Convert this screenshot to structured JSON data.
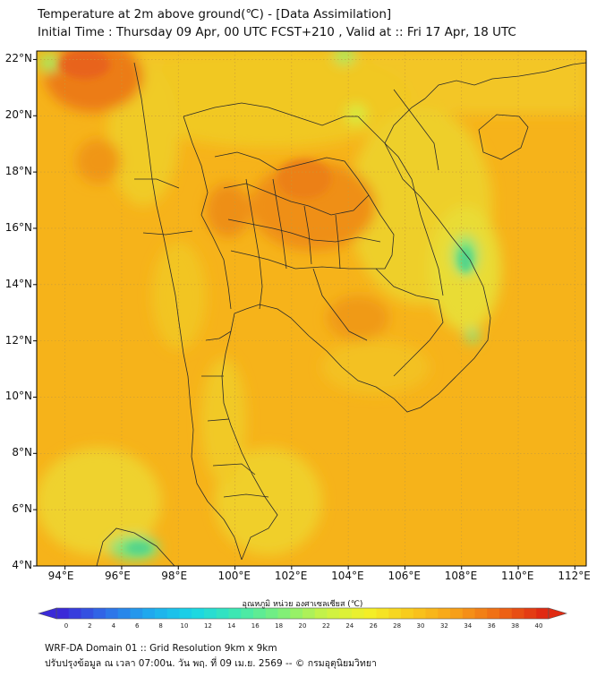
{
  "title": {
    "line1": "Temperature at 2m above ground(℃) - [Data Assimilation]",
    "line2": "Initial Time : Thursday 09 Apr, 00 UTC FCST+210 , Valid at :: Fri 17 Apr, 18 UTC"
  },
  "axes": {
    "lat_labels": [
      "22°N",
      "20°N",
      "18°N",
      "16°N",
      "14°N",
      "12°N",
      "10°N",
      "8°N",
      "6°N",
      "4°N"
    ],
    "lon_labels": [
      "94°E",
      "96°E",
      "98°E",
      "100°E",
      "102°E",
      "104°E",
      "106°E",
      "108°E",
      "110°E",
      "112°E"
    ],
    "lat_range": [
      4,
      22.3
    ],
    "lon_range": [
      93,
      112.4
    ]
  },
  "colorbar": {
    "title": "อุณหภูมิ หน่วย องศาเซลเซียส (℃)",
    "ticks": [
      "0",
      "2",
      "4",
      "6",
      "8",
      "10",
      "12",
      "14",
      "16",
      "18",
      "20",
      "22",
      "24",
      "26",
      "28",
      "30",
      "32",
      "34",
      "36",
      "38",
      "40"
    ],
    "min": 0,
    "max": 40,
    "colors": [
      "#3a2ad8",
      "#2f6fe8",
      "#1fa9ee",
      "#19d6e6",
      "#3fe8b0",
      "#7cf07a",
      "#c8f246",
      "#f4f028",
      "#f9c81c",
      "#f7a018",
      "#ef6a14",
      "#e02a12"
    ]
  },
  "footer": {
    "line1": "WRF-DA Domain 01 :: Grid Resolution 9km x 9km",
    "line2": "ปรับปรุงข้อมูล ณ เวลา 07:00น. วัน พฤ. ที่ 09 เม.ย. 2569 -- © กรมอุตุนิยมวิทยา"
  }
}
